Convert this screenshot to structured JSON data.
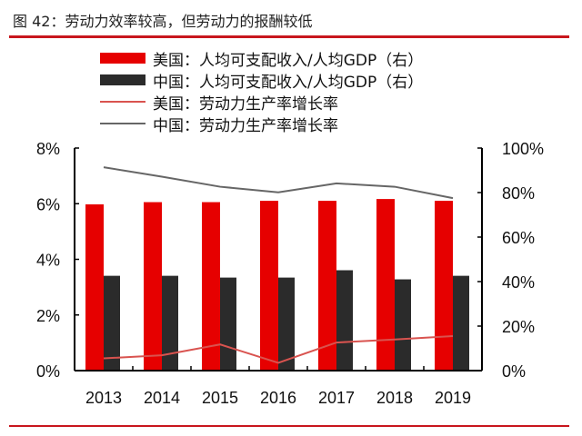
{
  "title": "图 42：劳动力效率较高，但劳动力的报酬较低",
  "colors": {
    "us_bar": "#e60000",
    "cn_bar": "#2b2b2b",
    "us_line": "#d9534f",
    "cn_line": "#666666",
    "rule": "#c8161d"
  },
  "chart_data": {
    "type": "bar",
    "title": "",
    "categories": [
      "2013",
      "2014",
      "2015",
      "2016",
      "2017",
      "2018",
      "2019"
    ],
    "left_axis": {
      "range": [
        0,
        8
      ],
      "ticks": [
        "0%",
        "2%",
        "4%",
        "6%",
        "8%"
      ],
      "tick_values": [
        0,
        2,
        4,
        6,
        8
      ]
    },
    "right_axis": {
      "range": [
        0,
        100
      ],
      "ticks": [
        "0%",
        "20%",
        "40%",
        "60%",
        "80%",
        "100%"
      ],
      "tick_values": [
        0,
        20,
        40,
        60,
        80,
        100
      ]
    },
    "grid": false,
    "legend_placement": "top",
    "series": [
      {
        "name": "美国：人均可支配收入/人均GDP（右）",
        "kind": "bar",
        "axis": "right",
        "values": [
          74.7,
          75.7,
          75.7,
          76.3,
          76.3,
          77.1,
          76.3
        ]
      },
      {
        "name": "中国：人均可支配收入/人均GDP（右）",
        "kind": "bar",
        "axis": "right",
        "values": [
          42.6,
          42.6,
          41.8,
          41.8,
          45.1,
          41.0,
          42.6
        ]
      },
      {
        "name": "美国：劳动力生产率增长率",
        "kind": "line",
        "axis": "left",
        "values": [
          0.44,
          0.55,
          0.94,
          0.28,
          1.01,
          1.12,
          1.24
        ]
      },
      {
        "name": "中国：劳动力生产率增长率",
        "kind": "line",
        "axis": "left",
        "values": [
          7.31,
          6.97,
          6.61,
          6.41,
          6.73,
          6.61,
          6.2
        ]
      }
    ]
  }
}
